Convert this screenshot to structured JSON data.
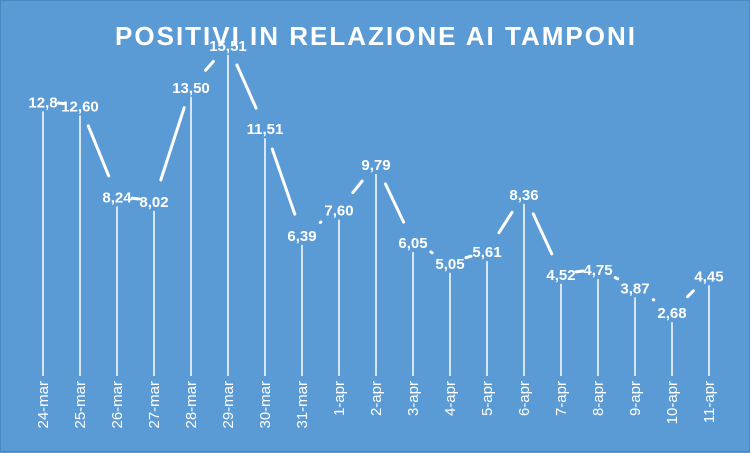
{
  "chart_data": {
    "type": "line",
    "title": "POSITIVI IN RELAZIONE AI TAMPONI",
    "xlabel": "",
    "ylabel": "",
    "ylim": [
      0,
      18
    ],
    "grid": false,
    "legend": "none",
    "categories": [
      "24-mar",
      "25-mar",
      "26-mar",
      "27-mar",
      "28-mar",
      "29-mar",
      "30-mar",
      "31-mar",
      "1-apr",
      "2-apr",
      "3-apr",
      "4-apr",
      "5-apr",
      "6-apr",
      "7-apr",
      "8-apr",
      "9-apr",
      "10-apr",
      "11-apr"
    ],
    "values": [
      12.8,
      12.6,
      8.24,
      8.02,
      13.5,
      15.51,
      11.51,
      6.39,
      7.6,
      9.79,
      6.05,
      5.05,
      5.61,
      8.36,
      4.52,
      4.75,
      3.87,
      2.68,
      4.45
    ],
    "data_labels": [
      "12,8",
      "12,60",
      "8,24",
      "8,02",
      "13,50",
      "15,51",
      "11,51",
      "6,39",
      "7,60",
      "9,79",
      "6,05",
      "5,05",
      "5,61",
      "8,36",
      "4,52",
      "4,75",
      "3,87",
      "2,68",
      "4,45"
    ],
    "colors": {
      "background": "#5b9bd5",
      "line": "#ffffff",
      "text": "#ffffff"
    }
  }
}
